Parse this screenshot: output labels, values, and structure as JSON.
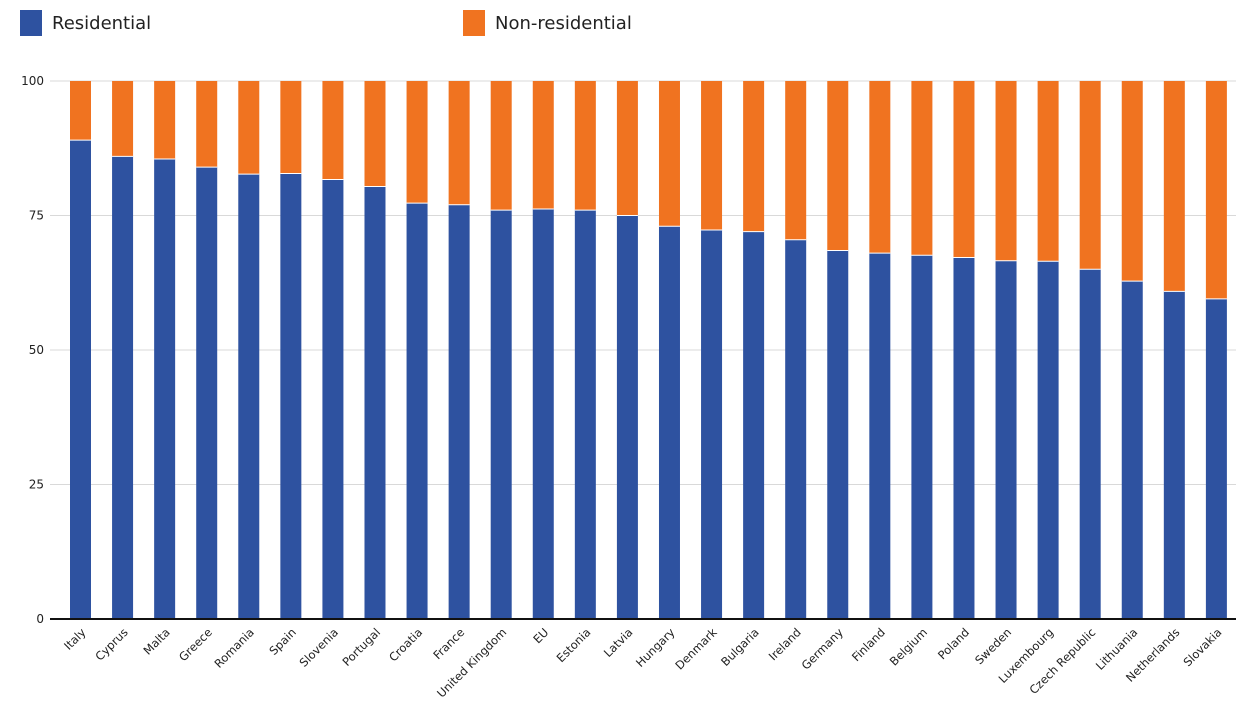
{
  "chart_data": {
    "type": "bar",
    "stacked": true,
    "categories": [
      "Italy",
      "Cyprus",
      "Malta",
      "Greece",
      "Romania",
      "Spain",
      "Slovenia",
      "Portugal",
      "Croatia",
      "France",
      "United Kingdom",
      "EU",
      "Estonia",
      "Latvia",
      "Hungary",
      "Denmark",
      "Bulgaria",
      "Ireland",
      "Germany",
      "Finland",
      "Belgium",
      "Poland",
      "Sweden",
      "Luxembourg",
      "Czech Republic",
      "Lithuania",
      "Netherlands",
      "Slovakia"
    ],
    "series": [
      {
        "name": "Residential",
        "color": "#2e52a0",
        "values": [
          89,
          86,
          85.5,
          84,
          82.7,
          82.8,
          81.7,
          80.4,
          77.3,
          77,
          76,
          76.2,
          76,
          75,
          73,
          72.3,
          72,
          70.5,
          68.5,
          68,
          67.6,
          67.2,
          66.6,
          66.5,
          65,
          62.8,
          60.9,
          59.5
        ]
      },
      {
        "name": "Non-residential",
        "color": "#f07320",
        "values": [
          11,
          14,
          14.5,
          16,
          17.3,
          17.2,
          18.3,
          19.6,
          22.7,
          23,
          24,
          23.8,
          24,
          25,
          27,
          27.7,
          28,
          29.5,
          31.5,
          32,
          32.4,
          32.8,
          33.4,
          33.5,
          35,
          37.2,
          39.1,
          40.5
        ]
      }
    ],
    "ylim": [
      0,
      100
    ],
    "yticks": [
      0,
      25,
      50,
      75,
      100
    ],
    "grid": true,
    "legend_position": "top",
    "title": "",
    "xlabel": "",
    "ylabel": ""
  }
}
